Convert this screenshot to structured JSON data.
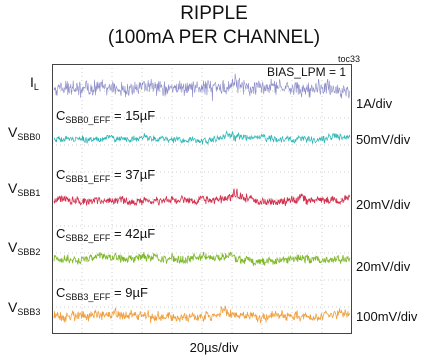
{
  "title_line1": "RIPPLE",
  "title_line2": "(100mA PER CHANNEL)",
  "figure_id": "toc33",
  "x_scale": "20µs/div",
  "bias_label": "BIAS_LPM = 1",
  "colors": {
    "i_l": "#8a8ac8",
    "v_sbb0": "#2bb5b5",
    "v_sbb1": "#d4304e",
    "v_sbb2": "#7fb82a",
    "v_sbb3": "#f0a040",
    "grid": "#cfcfcf",
    "frame": "#444444"
  },
  "channels": [
    {
      "name_main": "I",
      "name_sub": "L",
      "scale": "1A/div",
      "cap_main": "",
      "cap_sub": "",
      "cap_value": ""
    },
    {
      "name_main": "V",
      "name_sub": "SBB0",
      "scale": "50mV/div",
      "cap_main": "C",
      "cap_sub": "SBB0_EFF",
      "cap_value": " = 15µF"
    },
    {
      "name_main": "V",
      "name_sub": "SBB1",
      "scale": "20mV/div",
      "cap_main": "C",
      "cap_sub": "SBB1_EFF",
      "cap_value": " = 37µF"
    },
    {
      "name_main": "V",
      "name_sub": "SBB2",
      "scale": "20mV/div",
      "cap_main": "C",
      "cap_sub": "SBB2_EFF",
      "cap_value": " = 42µF"
    },
    {
      "name_main": "V",
      "name_sub": "SBB3",
      "scale": "100mV/div",
      "cap_main": "C",
      "cap_sub": "SBB3_EFF",
      "cap_value": " = 9µF"
    }
  ],
  "chart_data": {
    "type": "line",
    "x_divisions": 10,
    "y_divisions": 10,
    "grid": true,
    "series": [
      {
        "name": "IL",
        "scale_per_div": "1A/div"
      },
      {
        "name": "VSBB0",
        "scale_per_div": "50mV/div"
      },
      {
        "name": "VSBB1",
        "scale_per_div": "20mV/div"
      },
      {
        "name": "VSBB2",
        "scale_per_div": "20mV/div"
      },
      {
        "name": "VSBB3",
        "scale_per_div": "100mV/div"
      }
    ]
  }
}
